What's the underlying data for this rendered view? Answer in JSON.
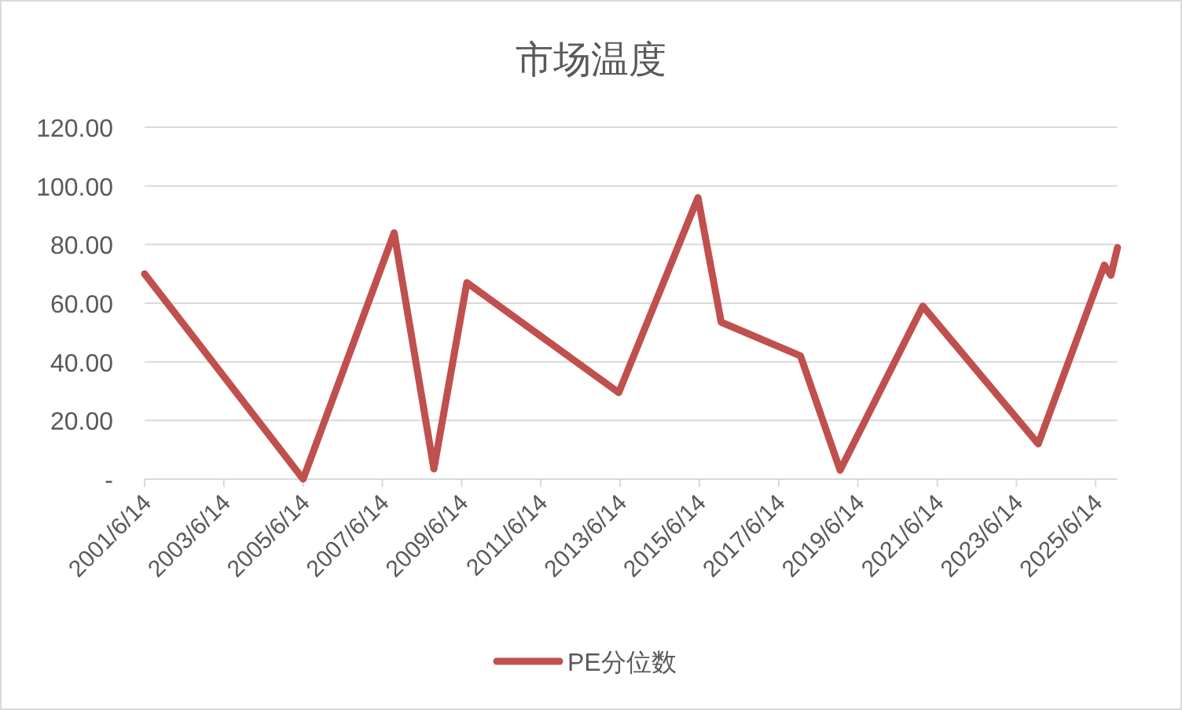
{
  "chart_data": {
    "type": "line",
    "title": "市场温度",
    "x": [
      "2001-06-14",
      "2005-06-14",
      "2007-10",
      "2008-10",
      "2009-08",
      "2013-06",
      "2015-06",
      "2016-01",
      "2018-01",
      "2019-01",
      "2021-02",
      "2024-01",
      "2025-09",
      "2025-11",
      "2026-01"
    ],
    "series": [
      {
        "name": "PE分位数",
        "color": "#c0504d",
        "values": [
          70,
          0,
          84,
          3.5,
          67,
          29.5,
          96,
          53.5,
          42,
          3,
          59,
          12,
          73,
          69.5,
          79
        ]
      }
    ],
    "xlim": [
      "2001-06-14",
      "2026-01"
    ],
    "xticks": [
      {
        "value": "2001-06-14",
        "label": "2001/6/14"
      },
      {
        "value": "2003-06-14",
        "label": "2003/6/14"
      },
      {
        "value": "2005-06-14",
        "label": "2005/6/14"
      },
      {
        "value": "2007-06-14",
        "label": "2007/6/14"
      },
      {
        "value": "2009-06-14",
        "label": "2009/6/14"
      },
      {
        "value": "2011-06-14",
        "label": "2011/6/14"
      },
      {
        "value": "2013-06-14",
        "label": "2013/6/14"
      },
      {
        "value": "2015-06-14",
        "label": "2015/6/14"
      },
      {
        "value": "2017-06-14",
        "label": "2017/6/14"
      },
      {
        "value": "2019-06-14",
        "label": "2019/6/14"
      },
      {
        "value": "2021-06-14",
        "label": "2021/6/14"
      },
      {
        "value": "2023-06-14",
        "label": "2023/6/14"
      },
      {
        "value": "2025-06-14",
        "label": "2025/6/14"
      }
    ],
    "ylim": [
      0,
      120
    ],
    "yticks": [
      {
        "value": 0,
        "label": "-"
      },
      {
        "value": 20,
        "label": "20.00"
      },
      {
        "value": 40,
        "label": "40.00"
      },
      {
        "value": 60,
        "label": "60.00"
      },
      {
        "value": 80,
        "label": "80.00"
      },
      {
        "value": 100,
        "label": "100.00"
      },
      {
        "value": 120,
        "label": "120.00"
      }
    ],
    "grid": "y",
    "legend": "bottom",
    "marker": "none",
    "line_style": "solid"
  }
}
